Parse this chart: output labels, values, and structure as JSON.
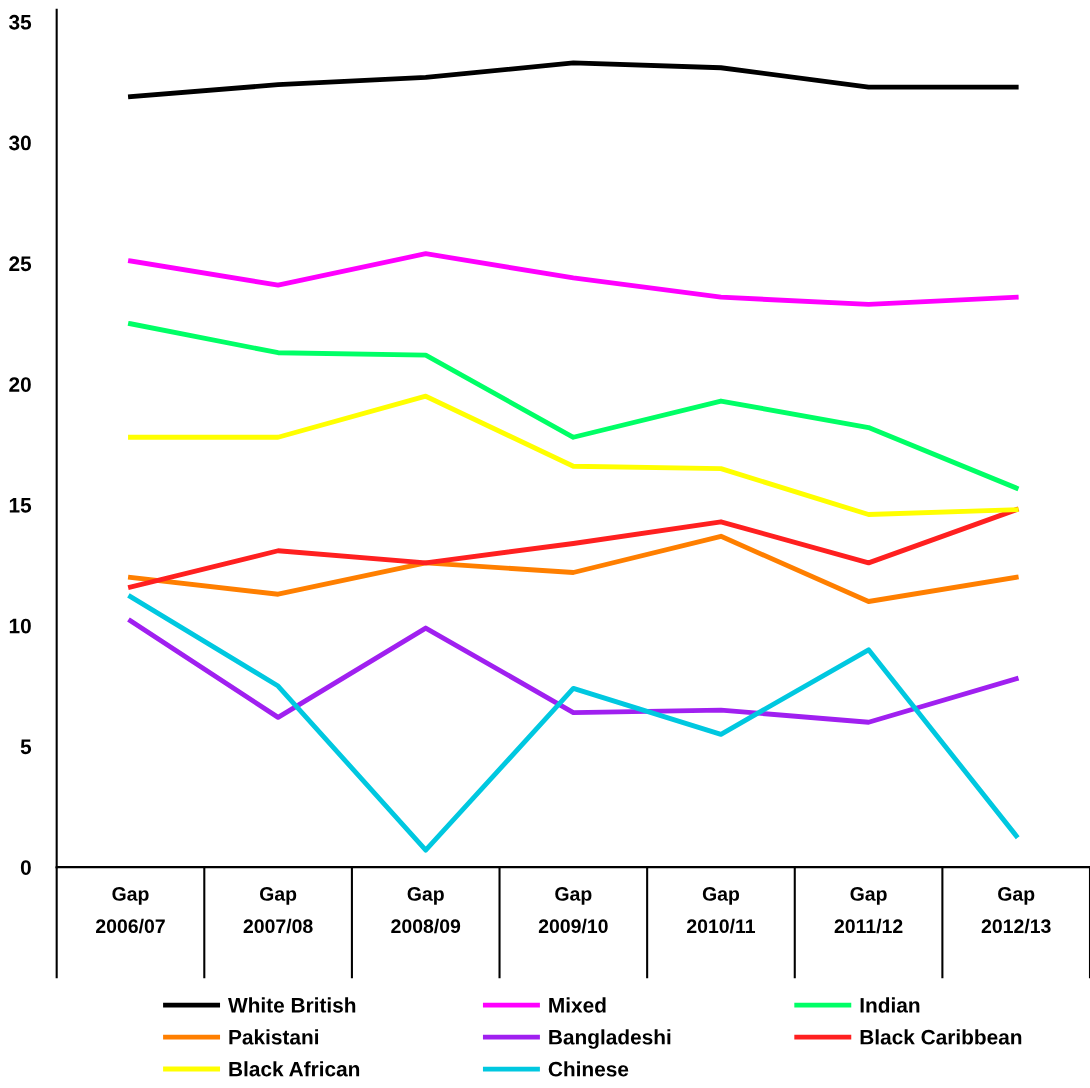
{
  "chart_data": {
    "type": "line",
    "categories": [
      "Gap\n2006/07",
      "Gap\n2007/08",
      "Gap\n2008/09",
      "Gap\n2009/10",
      "Gap\n2010/11",
      "Gap\n2011/12",
      "Gap\n2012/13"
    ],
    "ylim": [
      0,
      35.5
    ],
    "yticks": [
      0,
      5,
      10,
      15,
      20,
      25,
      30,
      35
    ],
    "grid": false,
    "legend": "bottom",
    "marker": "none",
    "line_style": "solid",
    "series": [
      {
        "name": "White British",
        "color": "#000000",
        "values": [
          31.9,
          32.4,
          32.7,
          33.3,
          33.1,
          32.3,
          32.3
        ]
      },
      {
        "name": "Mixed",
        "color": "#ff00ff",
        "values": [
          25.1,
          24.1,
          25.4,
          24.4,
          23.6,
          23.3,
          23.6
        ]
      },
      {
        "name": "Indian",
        "color": "#00ff66",
        "values": [
          22.5,
          21.3,
          21.2,
          17.8,
          19.3,
          18.2,
          15.7
        ]
      },
      {
        "name": "Pakistani",
        "color": "#ff7f00",
        "values": [
          12.0,
          11.3,
          12.6,
          12.2,
          13.7,
          11.0,
          12.0
        ]
      },
      {
        "name": "Bangladeshi",
        "color": "#a020f0",
        "values": [
          10.2,
          6.2,
          9.9,
          6.4,
          6.5,
          6.0,
          7.8
        ]
      },
      {
        "name": "Black Caribbean",
        "color": "#ff2020",
        "values": [
          11.6,
          13.1,
          12.6,
          13.4,
          14.3,
          12.6,
          14.8
        ]
      },
      {
        "name": "Black African",
        "color": "#ffff00",
        "values": [
          17.8,
          17.8,
          19.5,
          16.6,
          16.5,
          14.6,
          14.8
        ]
      },
      {
        "name": "Chinese",
        "color": "#00c8e0",
        "values": [
          11.2,
          7.5,
          0.7,
          7.4,
          5.5,
          9.0,
          1.3
        ]
      }
    ]
  }
}
